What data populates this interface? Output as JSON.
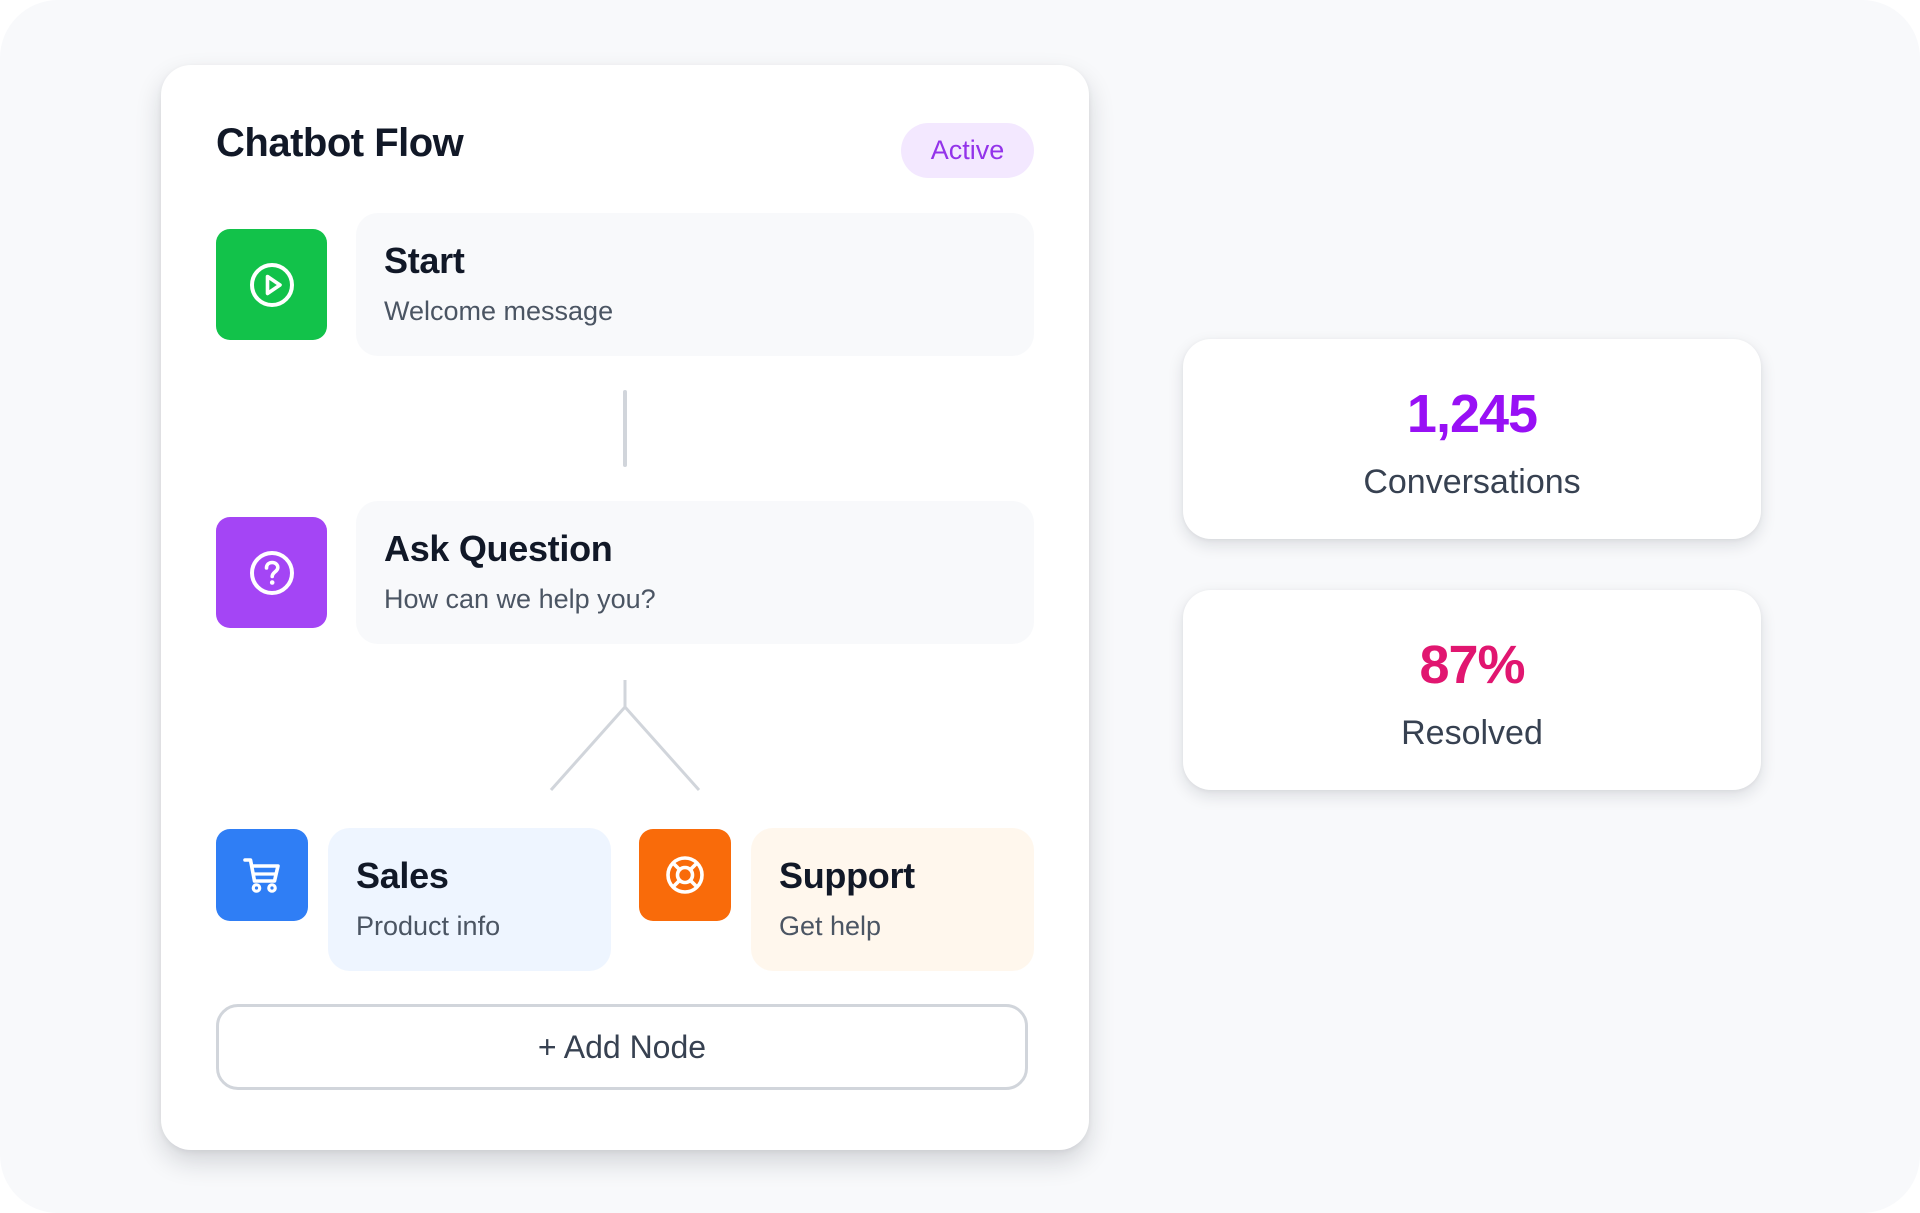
{
  "flow_card": {
    "title": "Chatbot Flow",
    "status": "Active",
    "add_node_label": "+ Add Node"
  },
  "nodes": [
    {
      "title": "Start",
      "subtitle": "Welcome message",
      "icon": "play-circle-icon",
      "color": "#12c24a"
    },
    {
      "title": "Ask Question",
      "subtitle": "How can we help you?",
      "icon": "question-circle-icon",
      "color": "#a445f5"
    },
    {
      "title": "Sales",
      "subtitle": "Product info",
      "icon": "shopping-cart-icon",
      "color": "#2f7ef5"
    },
    {
      "title": "Support",
      "subtitle": "Get help",
      "icon": "lifebuoy-icon",
      "color": "#f96b0a"
    }
  ],
  "stats": [
    {
      "value": "1,245",
      "label": "Conversations",
      "color": "#9810f5"
    },
    {
      "value": "87%",
      "label": "Resolved",
      "color": "#e11670"
    }
  ],
  "colors": {
    "sales_box": "#eef5ff",
    "support_box": "#fff7ed",
    "neutral_box": "#f8f9fb",
    "badge_bg": "#f3e8ff",
    "badge_text": "#9333ea"
  }
}
